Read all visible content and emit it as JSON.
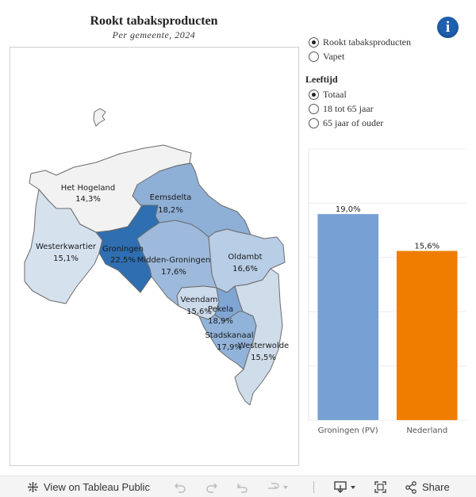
{
  "header": {
    "title": "Rookt  tabaksproducten",
    "subtitle": "Per  gemeente,  2024"
  },
  "indicator": {
    "options": [
      {
        "label": "Rookt  tabaksproducten",
        "selected": true
      },
      {
        "label": "Vapet",
        "selected": false
      }
    ]
  },
  "age": {
    "title": "Leeftijd",
    "options": [
      {
        "label": "Totaal",
        "selected": true
      },
      {
        "label": "18 tot 65 jaar",
        "selected": false
      },
      {
        "label": "65 jaar of ouder",
        "selected": false
      }
    ]
  },
  "map": {
    "municipalities": [
      {
        "name": "Het Hogeland",
        "value": "14,3%",
        "color": "#f2f2f2"
      },
      {
        "name": "Eemsdelta",
        "value": "18,2%",
        "color": "#8eafd6"
      },
      {
        "name": "Westerkwartier",
        "value": "15,1%",
        "color": "#d6e1ee"
      },
      {
        "name": "Groningen",
        "value": "22,5%",
        "color": "#2f6fb1"
      },
      {
        "name": "Midden-Groningen",
        "value": "17,6%",
        "color": "#9dbadc"
      },
      {
        "name": "Oldambt",
        "value": "16,6%",
        "color": "#b8cde6"
      },
      {
        "name": "Veendam",
        "value": "15,6%",
        "color": "#ccdbeb"
      },
      {
        "name": "Pekela",
        "value": "18,9%",
        "color": "#7fa6d3"
      },
      {
        "name": "Stadskanaal",
        "value": "17,9%",
        "color": "#92b3d9"
      },
      {
        "name": "Westerwolde",
        "value": "15,5%",
        "color": "#cfdcea"
      }
    ]
  },
  "chart_data": {
    "type": "bar",
    "categories": [
      "Groningen (PV)",
      "Nederland"
    ],
    "values": [
      19.0,
      15.6
    ],
    "value_labels": [
      "19,0%",
      "15,6%"
    ],
    "colors": [
      "#77a1d3",
      "#ef7d00"
    ],
    "ylim": [
      0,
      25
    ],
    "grid": true
  },
  "toolbar": {
    "view_label": "View on Tableau Public",
    "share_label": "Share"
  }
}
